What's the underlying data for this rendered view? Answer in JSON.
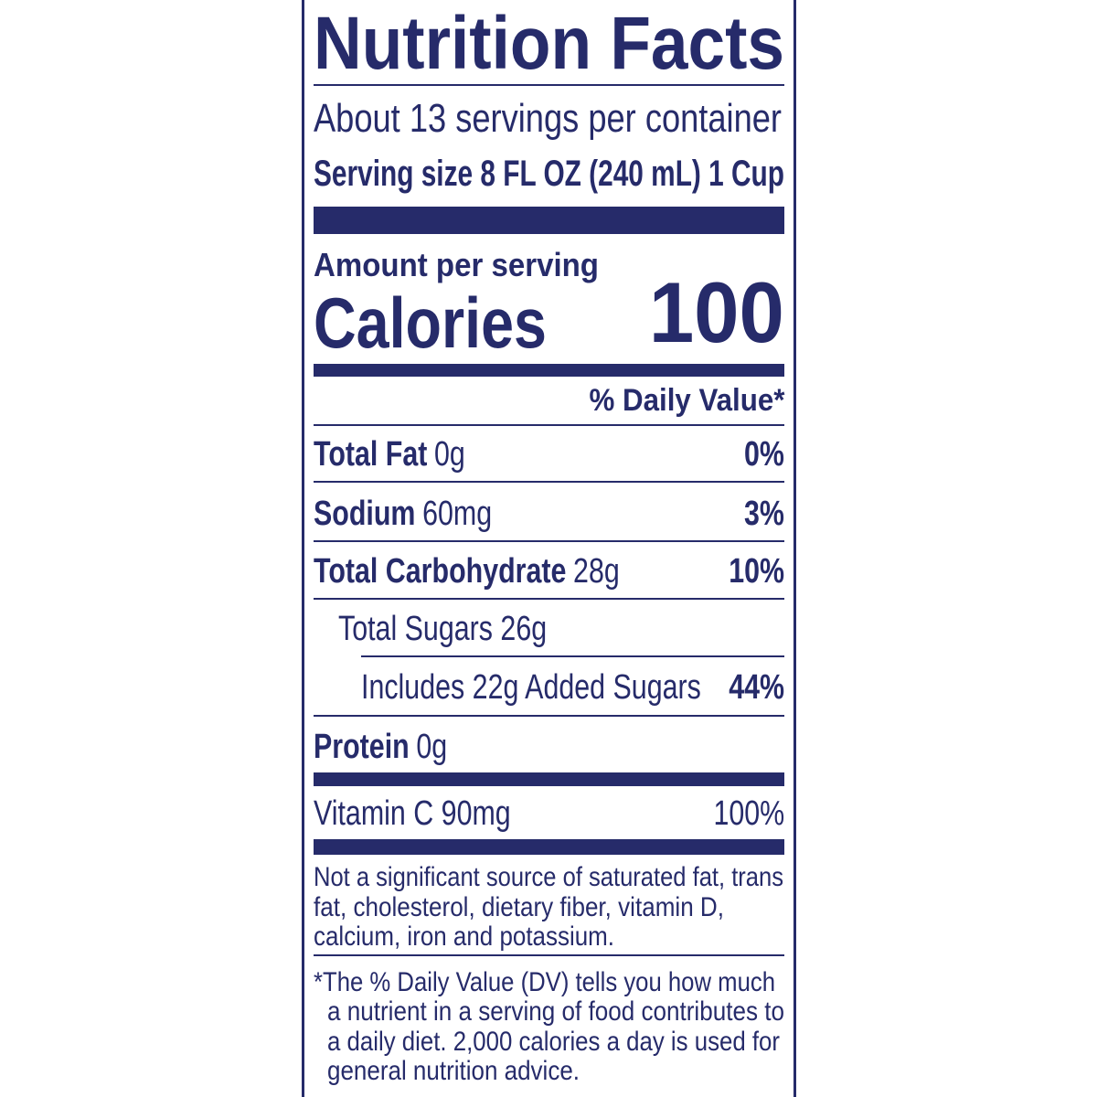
{
  "label": {
    "title": "Nutrition Facts",
    "servings": "About 13 servings per container",
    "serving_size": "Serving size 8 FL OZ (240 mL) 1 Cup",
    "amount_label": "Amount per serving",
    "calories": {
      "label": "Calories",
      "value": "100"
    },
    "dv_header": "% Daily Value*",
    "rows": [
      {
        "name": "Total Fat",
        "amount": "0g",
        "dv": "0%"
      },
      {
        "name": "Sodium",
        "amount": "60mg",
        "dv": "3%"
      },
      {
        "name": "Total Carbohydrate",
        "amount": "28g",
        "dv": "10%"
      }
    ],
    "total_sugars": "Total Sugars 26g",
    "added_sugars": {
      "text": "Includes 22g Added Sugars",
      "dv": "44%"
    },
    "protein": {
      "name": "Protein",
      "amount": "0g"
    },
    "vitamin": {
      "text": "Vitamin C 90mg",
      "dv": "100%"
    },
    "note": [
      "Not a significant source of saturated fat, trans",
      "fat, cholesterol, dietary fiber, vitamin D,",
      "calcium, iron and potassium."
    ],
    "footnote": [
      "*The % Daily Value (DV) tells you how much",
      "a nutrient in a serving of food contributes to",
      "a daily diet. 2,000 calories a day is used for",
      "general nutrition advice."
    ]
  }
}
